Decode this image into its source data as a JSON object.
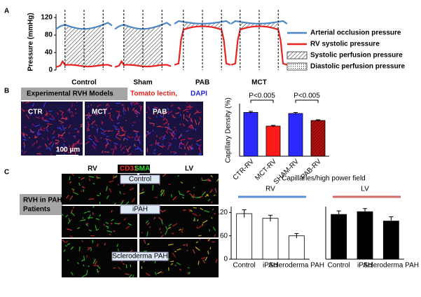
{
  "panel_labels": [
    "A",
    "B",
    "C"
  ],
  "chart_data": [
    {
      "type": "line",
      "ylabel": "Pressure (mmHg)",
      "ylim": [
        0,
        128
      ],
      "yticks": [
        0,
        40,
        80,
        120
      ],
      "categories": [
        "Control",
        "Sham",
        "PAB",
        "MCT"
      ],
      "series": [
        {
          "name": "Arterial occlusion pressure",
          "color": "#4a86c5"
        },
        {
          "name": "RV systolic pressure",
          "color": "#e8231f"
        }
      ],
      "hatch_legend": [
        "Systolic perfusion pressure",
        "Diastolic perfusion pressure"
      ]
    },
    {
      "type": "bar",
      "ylabel": "Capillary Density (%)",
      "categories": [
        "CTR-RV",
        "MCT-RV",
        "SHAM-RV",
        "PAB-RV"
      ],
      "values": [
        12.5,
        8.6,
        12.2,
        10.2
      ],
      "errors": [
        0.3,
        0.2,
        0.3,
        0.2
      ],
      "colors": [
        "#2a2aff",
        "#ff1a1a",
        "#2a2aff",
        "#b01010"
      ],
      "ylim": [
        0,
        15
      ],
      "annotations": [
        "P<0.005",
        "P<0.005"
      ]
    },
    {
      "type": "bar",
      "title": "RV",
      "title_color": "#5b8fd6",
      "categories": [
        "Control",
        "iPAH",
        "Scleroderma PAH"
      ],
      "values": [
        117,
        105,
        60
      ],
      "errors": [
        10,
        8,
        6
      ],
      "color": "#ffffff",
      "ylim": [
        0,
        135
      ],
      "yticks": [
        0,
        60,
        120
      ]
    },
    {
      "type": "bar",
      "title": "LV",
      "title_color": "#d46a6a",
      "categories": [
        "Control",
        "iPAH",
        "Scleroderma PAH"
      ],
      "values": [
        115,
        122,
        98
      ],
      "errors": [
        9,
        8,
        11
      ],
      "color": "#000000",
      "ylim": [
        0,
        135
      ]
    }
  ],
  "panel_b": {
    "header": "Experimental RVH Models",
    "stains": [
      "Tomato lectin,",
      "DAPI"
    ],
    "images": [
      "CTR",
      "MCT",
      "PAB"
    ],
    "scale": "100 µm"
  },
  "panel_c": {
    "title": "Capillaries/high power field",
    "side_label": [
      "RVH in PAH",
      "Patients"
    ],
    "columns": [
      "RV",
      "LV"
    ],
    "stains": [
      "CD31",
      "SMA"
    ],
    "rows": [
      "Control",
      "iPAH",
      "Scleroderma PAH"
    ]
  }
}
